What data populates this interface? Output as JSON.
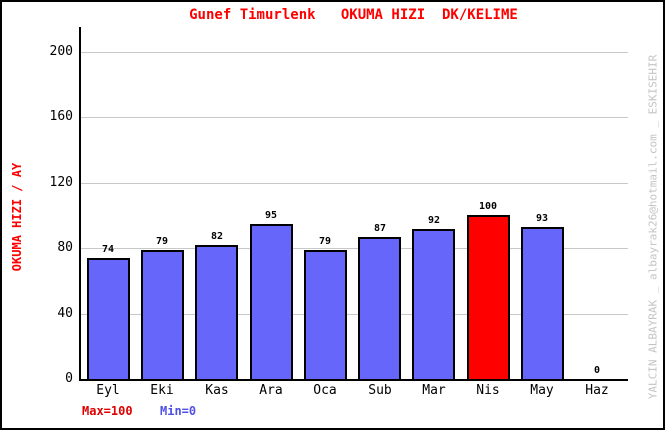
{
  "title": "Gunef Timurlenk   OKUMA HIZI  DK/KELIME",
  "footer": {
    "max_label": "Max=100",
    "min_label": "Min=0"
  },
  "watermark": "YALCIN ALBAYRAK _ albayrak26@hotmail.com _ ESKISEHIR",
  "chart_data": {
    "type": "bar",
    "title": "Gunef Timurlenk   OKUMA HIZI  DK/KELIME",
    "xlabel": "",
    "ylabel": "OKUMA HIZI / AY",
    "categories": [
      "Eyl",
      "Eki",
      "Kas",
      "Ara",
      "Oca",
      "Sub",
      "Mar",
      "Nis",
      "May",
      "Haz"
    ],
    "values": [
      74,
      79,
      82,
      95,
      79,
      87,
      92,
      100,
      93,
      0
    ],
    "bar_colors": [
      "#6666fa",
      "#6666fa",
      "#6666fa",
      "#6666fa",
      "#6666fa",
      "#6666fa",
      "#6666fa",
      "#ff0000",
      "#6666fa",
      "#6666fa"
    ],
    "highlight_index": 7,
    "highlight_category": "Nis",
    "yticks": [
      0,
      40,
      80,
      120,
      160,
      200
    ],
    "ylim": [
      0,
      215
    ],
    "grid": true,
    "legend": false,
    "max": 100,
    "min": 0,
    "colors": {
      "bar": "#6666fa",
      "bar_highlight": "#ff0000",
      "bar_border": "#000000",
      "title": "#ff0000",
      "ylabel": "#ff0000",
      "grid": "#c8c8c8",
      "axis": "#000000",
      "value_label": "#000000",
      "tick_label": "#000000",
      "max_label": "#e00000",
      "min_label": "#5050e6",
      "watermark": "#c4c4c4",
      "background": "#ffffff"
    }
  }
}
